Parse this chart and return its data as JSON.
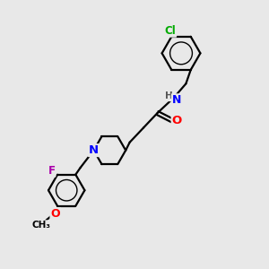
{
  "bg_color": "#e8e8e8",
  "bond_color": "#000000",
  "atom_colors": {
    "N": "#0000ff",
    "O": "#ff0000",
    "F": "#aa00aa",
    "Cl": "#00aa00",
    "C": "#000000"
  },
  "bond_lw": 1.6,
  "font_size": 8.5
}
